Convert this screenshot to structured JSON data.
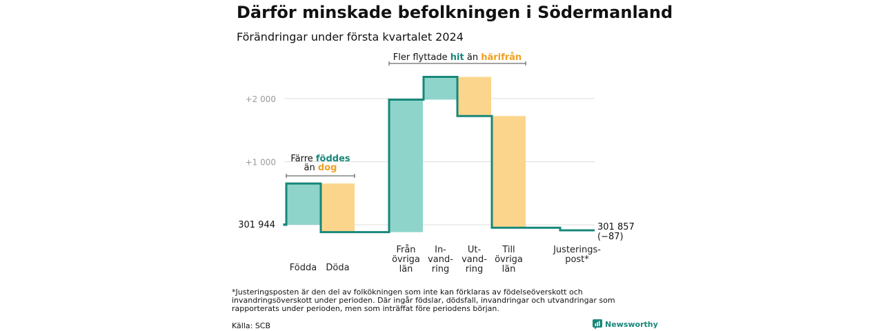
{
  "title": "Därför minskade befolkningen i Södermanland",
  "subtitle": "Förändringar under första kvartalet 2024",
  "colors": {
    "inflow": "#8ed4cb",
    "outflow": "#fbd58c",
    "line": "#17877a",
    "teal_text": "#17877a",
    "orange_text": "#f0a020",
    "grid": "#dddddd"
  },
  "chart_data": {
    "type": "waterfall",
    "start_value": 301944,
    "end_value": 301857,
    "start_label": "301  944",
    "end_label": "301 857",
    "end_change_label": "(−87)",
    "y_ticks": [
      {
        "value": 2000,
        "label": "+2  000"
      },
      {
        "value": 1000,
        "label": "+1  000"
      }
    ],
    "steps": [
      {
        "label_lines": [
          "Födda"
        ],
        "change": 655,
        "type": "in"
      },
      {
        "label_lines": [
          "Döda"
        ],
        "change": -771,
        "type": "out"
      },
      {
        "label_lines": [
          "Från",
          "övriga",
          "län"
        ],
        "change": 2100,
        "type": "in"
      },
      {
        "label_lines": [
          "In-",
          "vand-",
          "ring"
        ],
        "change": 360,
        "type": "in"
      },
      {
        "label_lines": [
          "Ut-",
          "vand-",
          "ring"
        ],
        "change": -620,
        "type": "out"
      },
      {
        "label_lines": [
          "Till",
          "övriga",
          "län"
        ],
        "change": -1770,
        "type": "out"
      },
      {
        "label_lines": [
          "Justerings-",
          "post*"
        ],
        "change": -41,
        "type": "adjust"
      }
    ],
    "annotations": [
      {
        "from_step": 0,
        "to_step": 1,
        "line1": [
          {
            "text": "Färre ",
            "color": "plain"
          },
          {
            "text": "föddes",
            "color": "teal"
          }
        ],
        "line2": [
          {
            "text": "än ",
            "color": "plain"
          },
          {
            "text": "dog",
            "color": "orange"
          }
        ]
      },
      {
        "from_step": 2,
        "to_step": 5,
        "line1": [
          {
            "text": "Fler flyttade ",
            "color": "plain"
          },
          {
            "text": "hit",
            "color": "teal"
          },
          {
            "text": " än ",
            "color": "plain"
          },
          {
            "text": "härifrån",
            "color": "orange"
          }
        ]
      }
    ]
  },
  "footnote": "*Justeringsposten är den del av folkökningen som inte kan förklaras av födelseöverskott och invandringsöverskott under perioden. Där ingår födslar, dödsfall, invandringar och utvandringar som rapporterats under perioden, men som inträffat före periodens början.",
  "source": "Källa: SCB",
  "brand": "Newsworthy"
}
